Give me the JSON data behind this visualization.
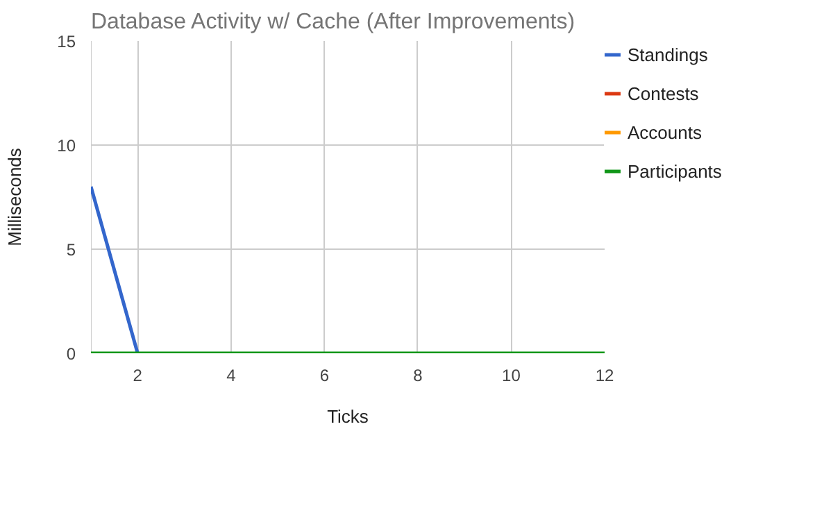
{
  "chart_data": {
    "type": "line",
    "title": "Database Activity w/ Cache (After Improvements)",
    "xlabel": "Ticks",
    "ylabel": "Milliseconds",
    "x": [
      1,
      2,
      3,
      4,
      5,
      6,
      7,
      8,
      9,
      10,
      11,
      12
    ],
    "series": [
      {
        "name": "Standings",
        "color": "#3366cc",
        "values": [
          8,
          0,
          null,
          null,
          null,
          null,
          null,
          null,
          null,
          null,
          null,
          null
        ]
      },
      {
        "name": "Contests",
        "color": "#dc3912",
        "values": [
          null,
          null,
          null,
          null,
          null,
          null,
          null,
          null,
          null,
          null,
          null,
          null
        ]
      },
      {
        "name": "Accounts",
        "color": "#ff9900",
        "values": [
          null,
          null,
          null,
          null,
          null,
          null,
          null,
          null,
          null,
          null,
          null,
          null
        ]
      },
      {
        "name": "Participants",
        "color": "#109618",
        "values": [
          0,
          0,
          0,
          0,
          0,
          0,
          0,
          0,
          0,
          0,
          0,
          0
        ]
      }
    ],
    "xlim": [
      1,
      12
    ],
    "xticks": [
      2,
      4,
      6,
      8,
      10,
      12
    ],
    "ylim": [
      0,
      15
    ],
    "yticks": [
      0,
      5,
      10,
      15
    ],
    "grid": true,
    "legend": "right",
    "marker": "none",
    "line_style": "solid"
  }
}
